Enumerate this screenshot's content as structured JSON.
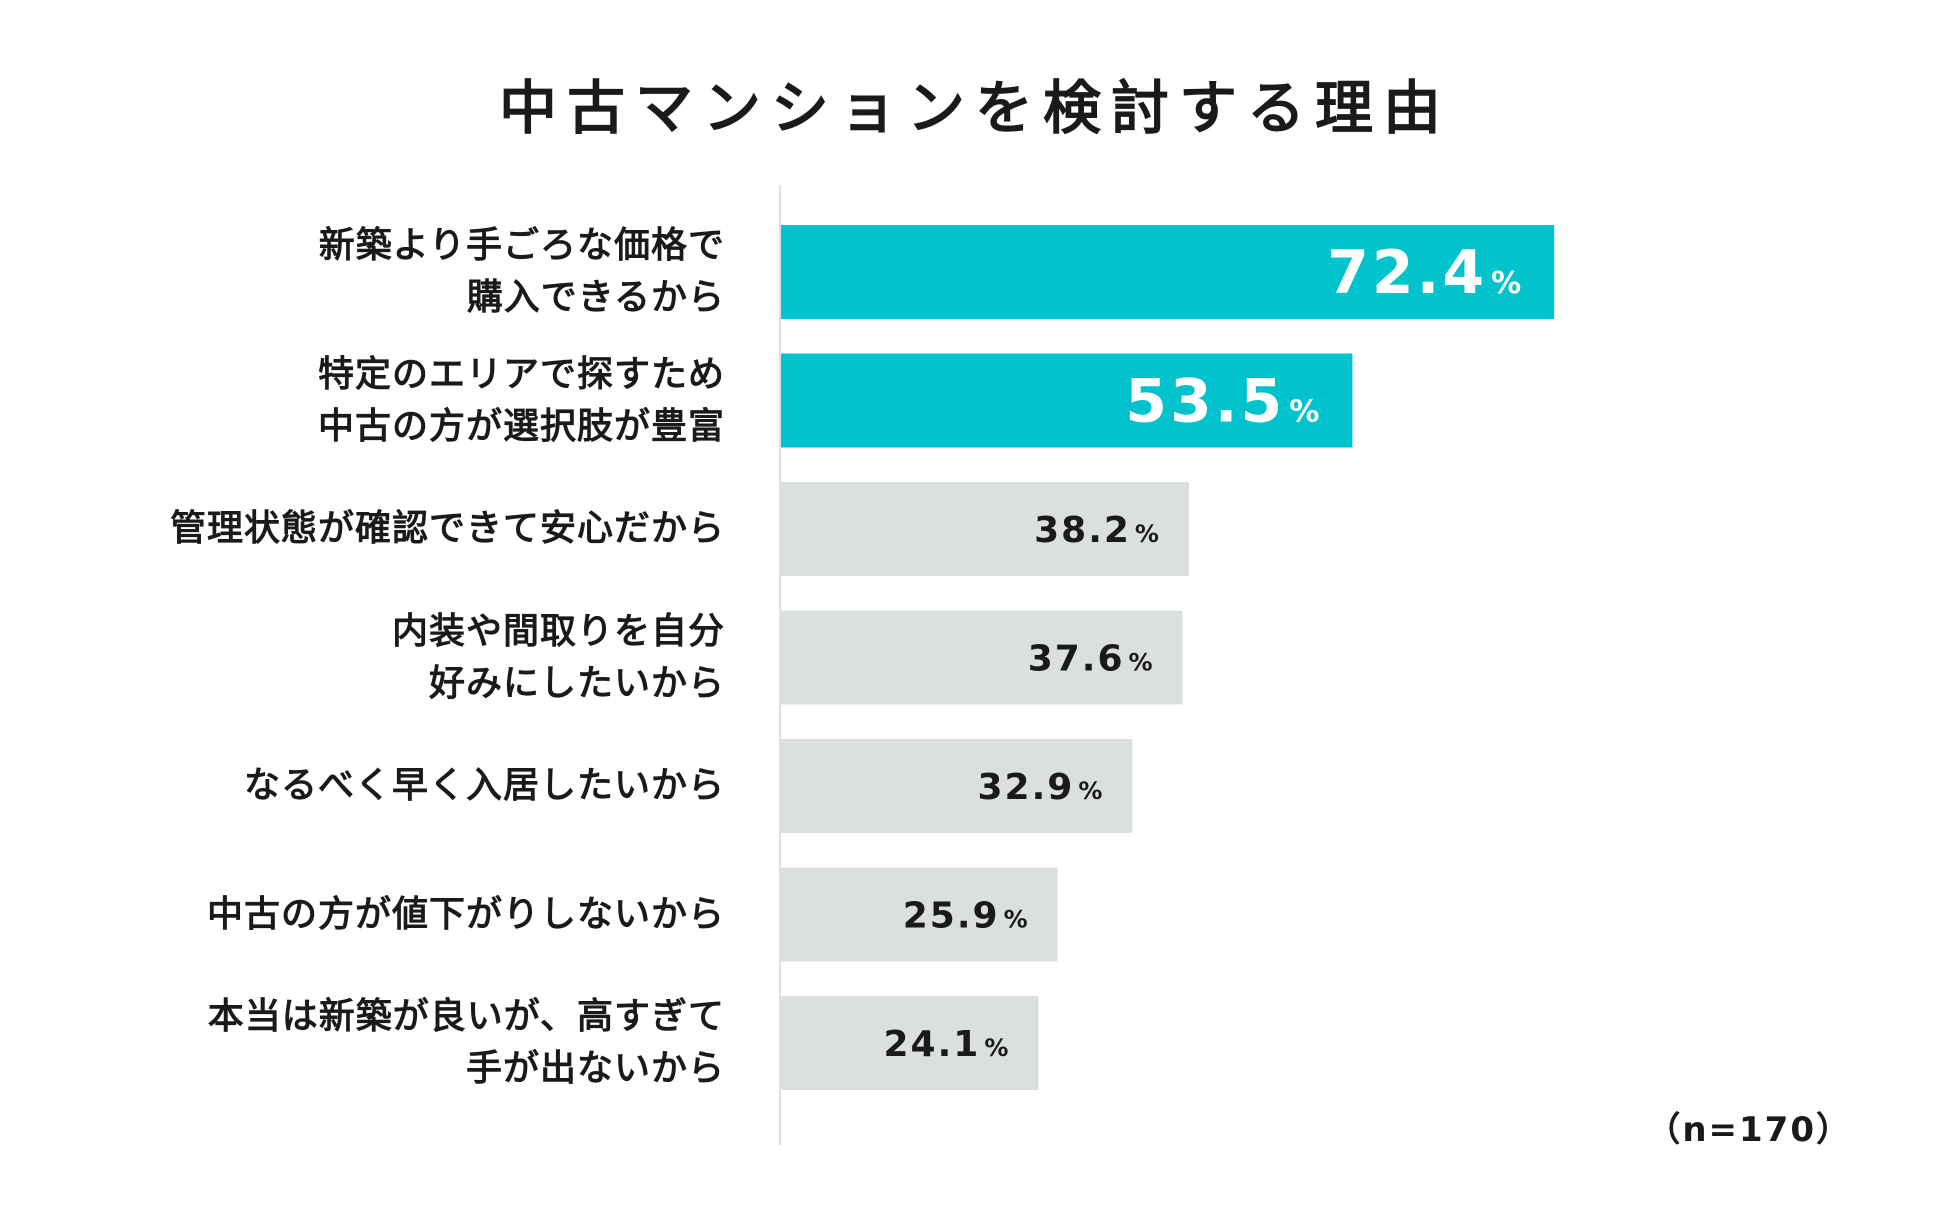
{
  "title": "中古マンションを検討する理由",
  "sample_note": "（n=170）",
  "colors": {
    "highlight": "#00c3cd",
    "normal": "#dbdfdf",
    "axis": "#d6d6d6",
    "text_on_highlight": "#ffffff",
    "text_on_normal": "#1a1a1a"
  },
  "chart_data": {
    "type": "bar",
    "orientation": "horizontal",
    "title": "中古マンションを検討する理由",
    "unit": "%",
    "xlim": [
      0,
      100
    ],
    "grid": false,
    "categories": [
      [
        "新築より手ごろな価格で",
        "購入できるから"
      ],
      [
        "特定のエリアで探すため",
        "中古の方が選択肢が豊富"
      ],
      [
        "管理状態が確認できて安心だから"
      ],
      [
        "内装や間取りを自分",
        "好みにしたいから"
      ],
      [
        "なるべく早く入居したいから"
      ],
      [
        "中古の方が値下がりしないから"
      ],
      [
        "本当は新築が良いが、高すぎて",
        "手が出ないから"
      ]
    ],
    "values": [
      72.4,
      53.5,
      38.2,
      37.6,
      32.9,
      25.9,
      24.1
    ],
    "highlight": [
      true,
      true,
      false,
      false,
      false,
      false,
      false
    ],
    "sample_size": "n=170"
  }
}
